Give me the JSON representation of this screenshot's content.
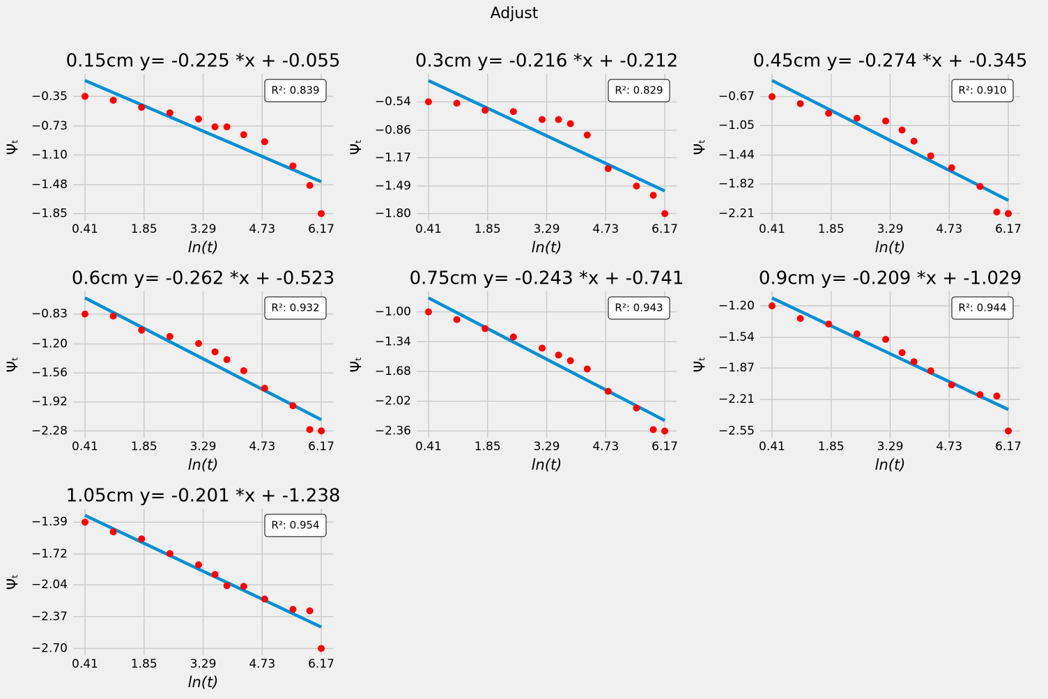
{
  "suptitle": "Adjust",
  "chart_data": [
    {
      "type": "scatter",
      "title": "0.15cm  y= -0.225 *x + -0.055",
      "xlabel": "ln(t)",
      "ylabel": "Ψₜ",
      "annotation": "R²: 0.839",
      "x": [
        0.41,
        1.1,
        1.79,
        2.48,
        3.18,
        3.58,
        3.87,
        4.28,
        4.79,
        5.48,
        5.89,
        6.17
      ],
      "values": [
        -0.35,
        -0.4,
        -0.49,
        -0.56,
        -0.64,
        -0.74,
        -0.74,
        -0.84,
        -0.93,
        -1.24,
        -1.49,
        -1.85
      ],
      "color": "#ff0000",
      "fit": {
        "x": [
          0.41,
          6.17
        ],
        "values": [
          -0.147,
          -1.443
        ],
        "color": "#008fd5"
      },
      "xlim": [
        0.122,
        6.458
      ],
      "ylim": [
        -1.935,
        -0.062
      ],
      "xticks": [
        0.41,
        1.85,
        3.29,
        4.73,
        6.17
      ],
      "yticks": [
        {
          "value": -0.35,
          "label": "−0.35"
        },
        {
          "value": -0.73,
          "label": "−0.73"
        },
        {
          "value": -1.1,
          "label": "−1.10"
        },
        {
          "value": -1.48,
          "label": "−1.48"
        },
        {
          "value": -1.85,
          "label": "−1.85"
        }
      ],
      "grid": true
    },
    {
      "type": "scatter",
      "title": "0.3cm  y= -0.216 *x + -0.212",
      "xlabel": "ln(t)",
      "ylabel": "Ψₜ",
      "annotation": "R²: 0.829",
      "x": [
        0.41,
        1.1,
        1.79,
        2.48,
        3.18,
        3.58,
        3.87,
        4.28,
        4.79,
        5.48,
        5.89,
        6.17
      ],
      "values": [
        -0.54,
        -0.556,
        -0.635,
        -0.65,
        -0.74,
        -0.74,
        -0.787,
        -0.914,
        -1.293,
        -1.49,
        -1.594,
        -1.8
      ],
      "color": "#ff0000",
      "fit": {
        "x": [
          0.41,
          6.17
        ],
        "values": [
          -0.301,
          -1.545
        ],
        "color": "#008fd5"
      },
      "xlim": [
        0.122,
        6.458
      ],
      "ylim": [
        -1.875,
        -0.225
      ],
      "xticks": [
        0.41,
        1.85,
        3.29,
        4.73,
        6.17
      ],
      "yticks": [
        {
          "value": -0.54,
          "label": "−0.54"
        },
        {
          "value": -0.86,
          "label": "−0.86"
        },
        {
          "value": -1.17,
          "label": "−1.17"
        },
        {
          "value": -1.49,
          "label": "−1.49"
        },
        {
          "value": -1.8,
          "label": "−1.80"
        }
      ],
      "grid": true
    },
    {
      "type": "scatter",
      "title": "0.45cm  y= -0.274 *x + -0.345",
      "xlabel": "ln(t)",
      "ylabel": "Ψₜ",
      "annotation": "R²: 0.910",
      "x": [
        0.41,
        1.1,
        1.79,
        2.48,
        3.18,
        3.58,
        3.87,
        4.28,
        4.79,
        5.48,
        5.89,
        6.17
      ],
      "values": [
        -0.67,
        -0.762,
        -0.89,
        -0.954,
        -0.991,
        -1.11,
        -1.257,
        -1.45,
        -1.606,
        -1.853,
        -2.19,
        -2.21
      ],
      "color": "#ff0000",
      "fit": {
        "x": [
          0.41,
          6.17
        ],
        "values": [
          -0.457,
          -2.036
        ],
        "color": "#008fd5"
      },
      "xlim": [
        0.122,
        6.458
      ],
      "ylim": [
        -2.298,
        -0.37
      ],
      "xticks": [
        0.41,
        1.85,
        3.29,
        4.73,
        6.17
      ],
      "yticks": [
        {
          "value": -0.67,
          "label": "−0.67"
        },
        {
          "value": -1.05,
          "label": "−1.05"
        },
        {
          "value": -1.44,
          "label": "−1.44"
        },
        {
          "value": -1.82,
          "label": "−1.82"
        },
        {
          "value": -2.21,
          "label": "−2.21"
        }
      ],
      "grid": true
    },
    {
      "type": "scatter",
      "title": "0.6cm  y= -0.262 *x + -0.523",
      "xlabel": "ln(t)",
      "ylabel": "Ψₜ",
      "annotation": "R²: 0.932",
      "x": [
        0.41,
        1.1,
        1.79,
        2.48,
        3.18,
        3.58,
        3.87,
        4.28,
        4.79,
        5.48,
        5.89,
        6.17
      ],
      "values": [
        -0.83,
        -0.856,
        -1.03,
        -1.108,
        -1.195,
        -1.299,
        -1.395,
        -1.533,
        -1.75,
        -1.967,
        -2.262,
        -2.28
      ],
      "color": "#ff0000",
      "fit": {
        "x": [
          0.41,
          6.17
        ],
        "values": [
          -0.63,
          -2.14
        ],
        "color": "#008fd5"
      },
      "xlim": [
        0.122,
        6.458
      ],
      "ylim": [
        -2.363,
        -0.548
      ],
      "xticks": [
        0.41,
        1.85,
        3.29,
        4.73,
        6.17
      ],
      "yticks": [
        {
          "value": -0.83,
          "label": "−0.83"
        },
        {
          "value": -1.2,
          "label": "−1.20"
        },
        {
          "value": -1.56,
          "label": "−1.56"
        },
        {
          "value": -1.92,
          "label": "−1.92"
        },
        {
          "value": -2.28,
          "label": "−2.28"
        }
      ],
      "grid": true
    },
    {
      "type": "scatter",
      "title": "0.75cm  y= -0.243 *x + -0.741",
      "xlabel": "ln(t)",
      "ylabel": "Ψₜ",
      "annotation": "R²: 0.943",
      "x": [
        0.41,
        1.1,
        1.79,
        2.48,
        3.18,
        3.58,
        3.87,
        4.28,
        4.79,
        5.48,
        5.89,
        6.17
      ],
      "values": [
        -1.0,
        -1.088,
        -1.191,
        -1.286,
        -1.414,
        -1.493,
        -1.557,
        -1.652,
        -1.907,
        -2.098,
        -2.344,
        -2.36
      ],
      "color": "#ff0000",
      "fit": {
        "x": [
          0.41,
          6.17
        ],
        "values": [
          -0.841,
          -2.24
        ],
        "color": "#008fd5"
      },
      "xlim": [
        0.122,
        6.458
      ],
      "ylim": [
        -2.436,
        -0.765
      ],
      "xticks": [
        0.41,
        1.85,
        3.29,
        4.73,
        6.17
      ],
      "yticks": [
        {
          "value": -1.0,
          "label": "−1.00"
        },
        {
          "value": -1.34,
          "label": "−1.34"
        },
        {
          "value": -1.68,
          "label": "−1.68"
        },
        {
          "value": -2.02,
          "label": "−2.02"
        },
        {
          "value": -2.36,
          "label": "−2.36"
        }
      ],
      "grid": true
    },
    {
      "type": "scatter",
      "title": "0.9cm  y= -0.209 *x + -1.029",
      "xlabel": "ln(t)",
      "ylabel": "Ψₜ",
      "annotation": "R²: 0.944",
      "x": [
        0.41,
        1.1,
        1.79,
        2.48,
        3.18,
        3.58,
        3.87,
        4.28,
        4.79,
        5.48,
        5.89,
        6.17
      ],
      "values": [
        -1.2,
        -1.336,
        -1.396,
        -1.502,
        -1.562,
        -1.705,
        -1.803,
        -1.901,
        -2.052,
        -2.158,
        -2.173,
        -2.55
      ],
      "color": "#ff0000",
      "fit": {
        "x": [
          0.41,
          6.17
        ],
        "values": [
          -1.115,
          -2.319
        ],
        "color": "#008fd5"
      },
      "xlim": [
        0.122,
        6.458
      ],
      "ylim": [
        -2.622,
        -1.043
      ],
      "xticks": [
        0.41,
        1.85,
        3.29,
        4.73,
        6.17
      ],
      "yticks": [
        {
          "value": -1.2,
          "label": "−1.20"
        },
        {
          "value": -1.54,
          "label": "−1.54"
        },
        {
          "value": -1.87,
          "label": "−1.87"
        },
        {
          "value": -2.21,
          "label": "−2.21"
        },
        {
          "value": -2.55,
          "label": "−2.55"
        }
      ],
      "grid": true
    },
    {
      "type": "scatter",
      "title": "1.05cm  y= -0.201 *x + -1.238",
      "xlabel": "ln(t)",
      "ylabel": "Ψₜ",
      "annotation": "R²: 0.954",
      "x": [
        0.41,
        1.1,
        1.79,
        2.48,
        3.18,
        3.58,
        3.87,
        4.28,
        4.79,
        5.48,
        5.89,
        6.17
      ],
      "values": [
        -1.39,
        -1.491,
        -1.564,
        -1.716,
        -1.832,
        -1.933,
        -2.049,
        -2.056,
        -2.187,
        -2.295,
        -2.31,
        -2.7
      ],
      "color": "#ff0000",
      "fit": {
        "x": [
          0.41,
          6.17
        ],
        "values": [
          -1.32,
          -2.478
        ],
        "color": "#008fd5"
      },
      "xlim": [
        0.122,
        6.458
      ],
      "ylim": [
        -2.769,
        -1.251
      ],
      "xticks": [
        0.41,
        1.85,
        3.29,
        4.73,
        6.17
      ],
      "yticks": [
        {
          "value": -1.39,
          "label": "−1.39"
        },
        {
          "value": -1.72,
          "label": "−1.72"
        },
        {
          "value": -2.04,
          "label": "−2.04"
        },
        {
          "value": -2.37,
          "label": "−2.37"
        },
        {
          "value": -2.7,
          "label": "−2.70"
        }
      ],
      "grid": true
    }
  ]
}
